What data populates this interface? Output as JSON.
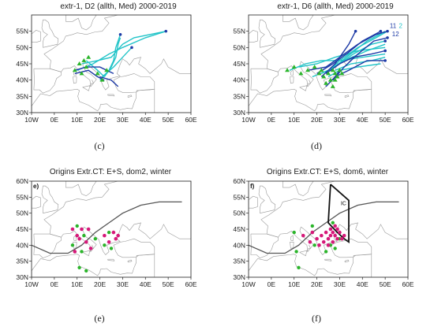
{
  "panels": [
    {
      "id": "c",
      "title": "extr-1, D2 (allth, Med) 2000-2019",
      "caption": "(c)",
      "x_ticks": [
        "10W",
        "0E",
        "10E",
        "20E",
        "30E",
        "40E",
        "50E",
        "60E"
      ],
      "y_ticks": [
        "55N",
        "50N",
        "45N",
        "40N",
        "35N",
        "30N"
      ],
      "tick_lon": [
        -10,
        0,
        10,
        20,
        30,
        40,
        50,
        60
      ],
      "tick_lat": [
        55,
        50,
        45,
        40,
        35,
        30
      ],
      "lon_range": [
        -10,
        60
      ],
      "lat_range": [
        30,
        60
      ],
      "colors": {
        "track_light": "#22c4c8",
        "track_dark": "#1d3aa6",
        "origin": "#2bb52b",
        "end": "#1d3aa6"
      },
      "tracks": [
        {
          "style": "light",
          "points": [
            [
              10,
              43
            ],
            [
              17,
              45
            ],
            [
              24,
              48
            ],
            [
              30,
              50
            ],
            [
              40,
              53
            ],
            [
              49,
              55
            ]
          ]
        },
        {
          "style": "light",
          "points": [
            [
              12,
              45
            ],
            [
              19,
              46
            ],
            [
              25,
              47
            ],
            [
              30,
              51
            ],
            [
              35,
              53
            ],
            [
              49,
              55
            ]
          ]
        },
        {
          "style": "light",
          "points": [
            [
              20,
              40
            ],
            [
              24,
              43
            ],
            [
              26,
              46
            ],
            [
              27,
              50
            ],
            [
              29,
              54
            ]
          ]
        },
        {
          "style": "light",
          "points": [
            [
              22,
              41
            ],
            [
              25,
              44
            ],
            [
              27,
              47
            ],
            [
              28,
              51
            ],
            [
              29,
              53
            ]
          ]
        },
        {
          "style": "light",
          "points": [
            [
              21,
              41
            ],
            [
              26,
              44
            ],
            [
              30,
              47
            ],
            [
              34,
              50
            ]
          ]
        },
        {
          "style": "light",
          "points": [
            [
              14,
              46
            ],
            [
              19,
              43
            ],
            [
              22,
              41
            ]
          ]
        },
        {
          "style": "dark",
          "points": [
            [
              9,
              43
            ],
            [
              14,
              44
            ],
            [
              20,
              44
            ],
            [
              26,
              42
            ]
          ]
        },
        {
          "style": "dark",
          "points": [
            [
              9,
              42
            ],
            [
              15,
              43
            ],
            [
              19,
              41
            ],
            [
              22,
              40
            ]
          ]
        },
        {
          "style": "dark",
          "points": [
            [
              20,
              41
            ],
            [
              25,
              40
            ],
            [
              28,
              38
            ]
          ]
        }
      ],
      "origins": [
        [
          11,
          45
        ],
        [
          13,
          46
        ],
        [
          15,
          47
        ],
        [
          9,
          43
        ],
        [
          12,
          42
        ],
        [
          19,
          42
        ],
        [
          21,
          40
        ],
        [
          23,
          43
        ],
        [
          14,
          44
        ]
      ],
      "ends": [
        [
          49,
          55
        ],
        [
          29,
          54
        ],
        [
          34,
          50
        ]
      ]
    },
    {
      "id": "d",
      "title": "extr-1, D6 (allth, Med) 2000-2019",
      "caption": "(d)",
      "x_ticks": [
        "10W",
        "0E",
        "10E",
        "20E",
        "30E",
        "40E",
        "50E",
        "60E"
      ],
      "y_ticks": [
        "55N",
        "50N",
        "45N",
        "40N",
        "35N",
        "30N"
      ],
      "tick_lon": [
        -10,
        0,
        10,
        20,
        30,
        40,
        50,
        60
      ],
      "tick_lat": [
        55,
        50,
        45,
        40,
        35,
        30
      ],
      "lon_range": [
        -10,
        60
      ],
      "lat_range": [
        30,
        60
      ],
      "labels": [
        {
          "text": "11",
          "lon": 52,
          "lat": 56,
          "color": "#1d3aa6"
        },
        {
          "text": "2",
          "lon": 56,
          "lat": 56,
          "color": "#22c4c8"
        },
        {
          "text": "12",
          "lon": 53,
          "lat": 53.5,
          "color": "#1d3aa6"
        }
      ],
      "colors": {
        "track_light": "#22c4c8",
        "track_dark": "#1d3aa6",
        "origin": "#2bb52b",
        "end": "#1d3aa6"
      },
      "tracks": [
        {
          "style": "light",
          "points": [
            [
              8,
              43
            ],
            [
              15,
              45
            ],
            [
              22,
              46
            ],
            [
              30,
              46
            ],
            [
              40,
              47
            ],
            [
              50,
              48
            ]
          ]
        },
        {
          "style": "light",
          "points": [
            [
              12,
              44
            ],
            [
              20,
              45
            ],
            [
              28,
              47
            ],
            [
              38,
              49
            ],
            [
              50,
              50
            ]
          ]
        },
        {
          "style": "light",
          "points": [
            [
              18,
              41
            ],
            [
              25,
              43
            ],
            [
              32,
              46
            ],
            [
              42,
              49
            ],
            [
              50,
              51
            ]
          ]
        },
        {
          "style": "light",
          "points": [
            [
              22,
              42
            ],
            [
              28,
              44
            ],
            [
              36,
              48
            ],
            [
              44,
              51
            ],
            [
              50,
              52
            ]
          ]
        },
        {
          "style": "light",
          "points": [
            [
              24,
              42
            ],
            [
              30,
              46
            ],
            [
              38,
              50
            ],
            [
              46,
              53
            ],
            [
              51,
              55
            ]
          ]
        },
        {
          "style": "light",
          "points": [
            [
              26,
              43
            ],
            [
              33,
              47
            ],
            [
              42,
              52
            ],
            [
              50,
              55
            ]
          ]
        },
        {
          "style": "light",
          "points": [
            [
              28,
              43
            ],
            [
              35,
              45
            ],
            [
              44,
              46
            ],
            [
              50,
              47
            ]
          ]
        },
        {
          "style": "light",
          "points": [
            [
              25,
              41
            ],
            [
              30,
              43
            ],
            [
              38,
              44
            ],
            [
              48,
              45
            ]
          ]
        },
        {
          "style": "dark",
          "points": [
            [
              16,
              43
            ],
            [
              24,
              44
            ],
            [
              30,
              47
            ],
            [
              38,
              51
            ],
            [
              46,
              54
            ],
            [
              51,
              55
            ]
          ]
        },
        {
          "style": "dark",
          "points": [
            [
              20,
              42
            ],
            [
              27,
              45
            ],
            [
              33,
              48
            ],
            [
              40,
              52
            ],
            [
              48,
              55
            ]
          ]
        },
        {
          "style": "dark",
          "points": [
            [
              27,
              40
            ],
            [
              32,
              44
            ],
            [
              38,
              48
            ],
            [
              45,
              52
            ],
            [
              51,
              53
            ]
          ]
        },
        {
          "style": "dark",
          "points": [
            [
              24,
              42
            ],
            [
              30,
              45
            ],
            [
              36,
              47
            ],
            [
              44,
              48
            ],
            [
              50,
              49
            ]
          ]
        },
        {
          "style": "dark",
          "points": [
            [
              28,
              41
            ],
            [
              34,
              43
            ],
            [
              42,
              46
            ],
            [
              50,
              46
            ]
          ]
        },
        {
          "style": "dark",
          "points": [
            [
              22,
              41
            ],
            [
              28,
              45
            ],
            [
              34,
              51
            ],
            [
              37,
              55
            ]
          ]
        },
        {
          "style": "dark",
          "points": [
            [
              24,
              38
            ],
            [
              28,
              41
            ],
            [
              30,
              43
            ]
          ]
        }
      ],
      "origins": [
        [
          7,
          43
        ],
        [
          10,
          44
        ],
        [
          13,
          42
        ],
        [
          16,
          43
        ],
        [
          19,
          44
        ],
        [
          21,
          42
        ],
        [
          23,
          41
        ],
        [
          25,
          42
        ],
        [
          26,
          40
        ],
        [
          27,
          43
        ],
        [
          28,
          42
        ],
        [
          29,
          41
        ],
        [
          30,
          43
        ],
        [
          24,
          39
        ],
        [
          22,
          43
        ],
        [
          27,
          38
        ],
        [
          28,
          40
        ],
        [
          31,
          42
        ]
      ],
      "ends": [
        [
          51,
          55
        ],
        [
          48,
          55
        ],
        [
          37,
          55
        ],
        [
          50,
          52
        ],
        [
          51,
          53
        ],
        [
          50,
          49
        ],
        [
          50,
          46
        ]
      ]
    },
    {
      "id": "e",
      "title": "Origins Extr.CT: E+S, dom2, winter",
      "caption": "(e)",
      "letter": "e)",
      "x_ticks": [
        "10W",
        "0E",
        "10E",
        "20E",
        "30E",
        "40E",
        "50E",
        "60E"
      ],
      "y_ticks": [
        "60N",
        "55N",
        "50N",
        "45N",
        "40N",
        "35N",
        "30N"
      ],
      "tick_lon": [
        -10,
        0,
        10,
        20,
        30,
        40,
        50,
        60
      ],
      "tick_lat": [
        60,
        55,
        50,
        45,
        40,
        35,
        30
      ],
      "lon_range": [
        -10,
        60
      ],
      "lat_range": [
        30,
        60
      ],
      "colors": {
        "winter": "#d6197a",
        "other": "#2bb52b",
        "curve": "#555555"
      },
      "curve": [
        [
          -10,
          40
        ],
        [
          -2,
          37.5
        ],
        [
          6,
          37.5
        ],
        [
          12,
          40
        ],
        [
          18,
          44
        ],
        [
          24,
          47
        ],
        [
          30,
          50
        ],
        [
          38,
          52.5
        ],
        [
          46,
          53.5
        ],
        [
          56,
          53.5
        ]
      ],
      "dots_magenta": [
        [
          8,
          45
        ],
        [
          10,
          43
        ],
        [
          12,
          45
        ],
        [
          15,
          45
        ],
        [
          11,
          42
        ],
        [
          14,
          41
        ],
        [
          22,
          43
        ],
        [
          24,
          41
        ],
        [
          26,
          44
        ],
        [
          27,
          42
        ],
        [
          28,
          43
        ],
        [
          16,
          39
        ],
        [
          9,
          38
        ]
      ],
      "dots_green": [
        [
          8,
          40
        ],
        [
          10,
          46
        ],
        [
          13,
          43
        ],
        [
          18,
          42
        ],
        [
          24,
          44
        ],
        [
          25,
          39
        ],
        [
          12,
          38
        ],
        [
          11,
          33
        ],
        [
          14,
          32
        ],
        [
          22,
          40
        ]
      ]
    },
    {
      "id": "f",
      "title": "Origins Extr.CT: E+S, dom6, winter",
      "caption": "(f)",
      "letter": "f)",
      "box_label": "IC",
      "x_ticks": [
        "10W",
        "0E",
        "10E",
        "20E",
        "30E",
        "40E",
        "50E",
        "60E"
      ],
      "y_ticks": [
        "60N",
        "55N",
        "50N",
        "45N",
        "40N",
        "35N",
        "30N"
      ],
      "tick_lon": [
        -10,
        0,
        10,
        20,
        30,
        40,
        50,
        60
      ],
      "tick_lat": [
        60,
        55,
        50,
        45,
        40,
        35,
        30
      ],
      "lon_range": [
        -10,
        60
      ],
      "lat_range": [
        30,
        60
      ],
      "colors": {
        "winter": "#d6197a",
        "other": "#2bb52b",
        "curve": "#555555",
        "box": "#111111"
      },
      "curve": [
        [
          -10,
          40
        ],
        [
          -2,
          37.5
        ],
        [
          6,
          37.5
        ],
        [
          12,
          40
        ],
        [
          18,
          44
        ],
        [
          24,
          47
        ],
        [
          30,
          50
        ],
        [
          38,
          52.5
        ],
        [
          46,
          53.5
        ],
        [
          56,
          53.5
        ]
      ],
      "box_path": [
        [
          26,
          59
        ],
        [
          34,
          54
        ],
        [
          34,
          41
        ],
        [
          32,
          42
        ],
        [
          29,
          44
        ],
        [
          25,
          47
        ],
        [
          26,
          59
        ]
      ],
      "dots_magenta": [
        [
          14,
          43
        ],
        [
          18,
          44
        ],
        [
          20,
          42
        ],
        [
          22,
          43
        ],
        [
          23,
          41
        ],
        [
          24,
          44
        ],
        [
          25,
          42
        ],
        [
          26,
          45
        ],
        [
          27,
          44
        ],
        [
          28,
          43
        ],
        [
          29,
          45
        ],
        [
          30,
          44
        ],
        [
          31,
          42
        ],
        [
          32,
          43
        ],
        [
          27,
          41
        ],
        [
          29,
          42
        ],
        [
          26,
          43
        ],
        [
          25,
          40
        ],
        [
          28,
          46
        ],
        [
          21,
          40
        ],
        [
          17,
          41
        ]
      ],
      "dots_green": [
        [
          10,
          44
        ],
        [
          11,
          38
        ],
        [
          19,
          40
        ],
        [
          24,
          38
        ],
        [
          26,
          40
        ],
        [
          27,
          47
        ],
        [
          30,
          42
        ],
        [
          12,
          33
        ],
        [
          18,
          46
        ],
        [
          28,
          39
        ]
      ]
    }
  ]
}
